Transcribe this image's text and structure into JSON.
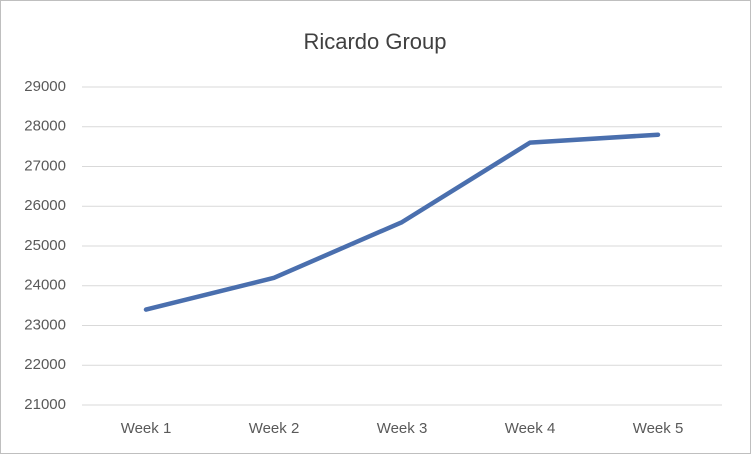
{
  "chart_data": {
    "type": "line",
    "title": "Ricardo Group",
    "categories": [
      "Week 1",
      "Week 2",
      "Week 3",
      "Week 4",
      "Week 5"
    ],
    "values": [
      23400,
      24200,
      25600,
      27600,
      27800
    ],
    "color": "#4a6fae",
    "ylim": [
      21000,
      29000
    ],
    "yticks": [
      21000,
      22000,
      23000,
      24000,
      25000,
      26000,
      27000,
      28000,
      29000
    ],
    "grid": true
  }
}
